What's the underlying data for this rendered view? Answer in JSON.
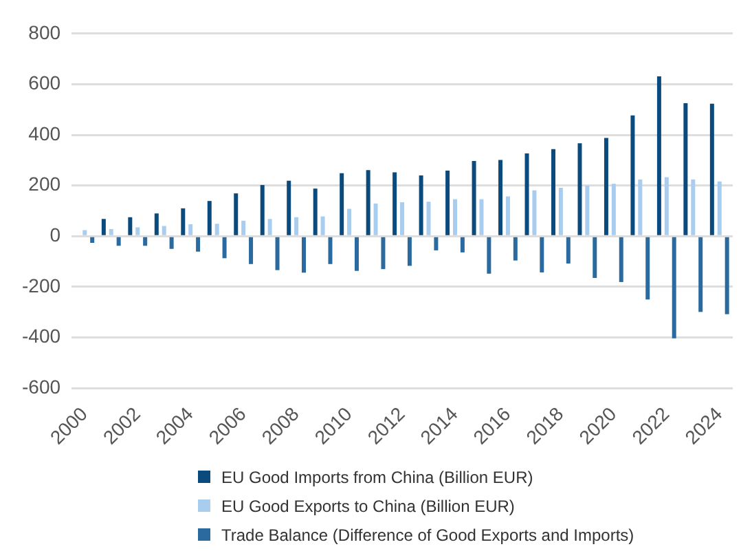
{
  "chart_data": {
    "type": "bar",
    "categories": [
      "2000",
      null,
      "2002",
      null,
      "2004",
      null,
      "2006",
      null,
      "2008",
      null,
      "2010",
      null,
      "2012",
      null,
      "2014",
      null,
      "2016",
      null,
      "2018",
      null,
      "2020",
      null,
      "2022",
      null,
      "2024"
    ],
    "series": [
      {
        "name": "EU Good Imports from China (Billion EUR)",
        "color": "#0b4a7d",
        "values": [
          null,
          68,
          75,
          90,
          110,
          139,
          169,
          202,
          219,
          188,
          249,
          261,
          252,
          240,
          259,
          297,
          301,
          327,
          344,
          367,
          388,
          477,
          631,
          525,
          523
        ]
      },
      {
        "name": "EU Good Exports to China (Billion EUR)",
        "color": "#a9cdef",
        "values": [
          24,
          28,
          35,
          40,
          47,
          49,
          61,
          68,
          75,
          78,
          108,
          129,
          134,
          136,
          146,
          146,
          157,
          181,
          191,
          200,
          207,
          224,
          233,
          224,
          216
        ]
      },
      {
        "name": "Trade Balance (Difference of Good Exports and Imports)",
        "color": "#2a6a9e",
        "values": [
          -26,
          -38,
          -38,
          -50,
          -61,
          -87,
          -110,
          -134,
          -144,
          -110,
          -137,
          -130,
          -117,
          -56,
          -64,
          -148,
          -96,
          -143,
          -108,
          -165,
          -181,
          -250,
          -403,
          -299,
          -308
        ]
      }
    ],
    "ylim": [
      -600,
      800
    ],
    "yticks": [
      -600,
      -400,
      -200,
      0,
      200,
      400,
      600,
      800
    ],
    "grid": "y",
    "legend": "bottom"
  }
}
